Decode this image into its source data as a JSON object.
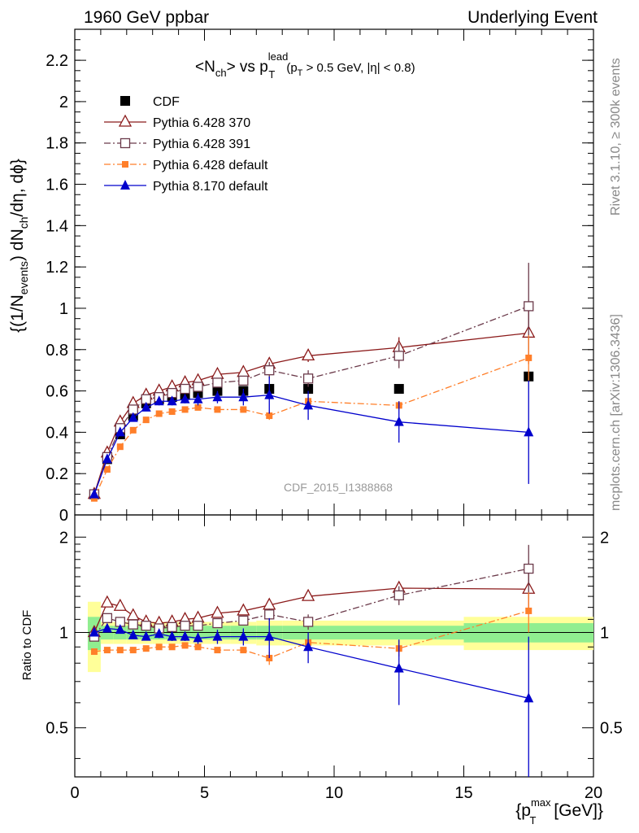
{
  "header": {
    "left": "1960 GeV ppbar",
    "right": "Underlying Event"
  },
  "side_labels": {
    "rivet": "Rivet 3.1.10, ≥ 300k events",
    "mcplots": "mcplots.cern.ch [arXiv:1306.3436]"
  },
  "watermark": "CDF_2015_I1388868",
  "plot_title": {
    "main": "<N",
    "ch_sub": "ch",
    "vs": "> vs p",
    "lead_sup": "lead",
    "T_sub": "T",
    "cuts": "(p",
    "cuts_T": "T",
    "cuts_rest": " > 0.5 GeV, |η| < 0.8)"
  },
  "y_axis_label_main": {
    "p1": "{(1/N",
    "events": "events",
    "p2": ") dN",
    "ch": "ch",
    "p3": "/dη, dϕ}"
  },
  "ratio_label": "Ratio to CDF",
  "x_axis_label": {
    "p1": "{p",
    "max": "max",
    "T": "T",
    "p2": " [GeV]}"
  },
  "colors": {
    "cdf": "#000000",
    "py370": "#8b1a1a",
    "py391": "#6b3a4a",
    "py_default": "#ff7f2a",
    "py8": "#0000cc",
    "band_inner": "#90ee90",
    "band_outer": "#ffff99"
  },
  "chart_data": {
    "type": "scatter",
    "x_range": [
      0,
      20
    ],
    "main_y_range": [
      0,
      2.35
    ],
    "ratio_y_range": [
      0.35,
      2.35
    ],
    "ratio_y_scale": "log",
    "main_y_ticks": [
      "0",
      "0.2",
      "0.4",
      "0.6",
      "0.8",
      "1",
      "1.2",
      "1.4",
      "1.6",
      "1.8",
      "2",
      "2.2"
    ],
    "ratio_y_ticks": [
      "0.5",
      "1",
      "2"
    ],
    "x_ticks": [
      "0",
      "5",
      "10",
      "15",
      "20"
    ],
    "x": [
      0.75,
      1.25,
      1.75,
      2.25,
      2.75,
      3.25,
      3.75,
      4.25,
      4.75,
      5.5,
      6.5,
      7.5,
      9.0,
      12.5,
      17.5
    ],
    "x_bin_edges": [
      0.5,
      1.0,
      1.5,
      2.0,
      2.5,
      3.0,
      3.5,
      4.0,
      4.5,
      5.0,
      6.0,
      7.0,
      8.0,
      10.0,
      15.0,
      20.0
    ],
    "legend_position": "top-left",
    "series": [
      {
        "name": "CDF",
        "values": [
          0.1,
          0.27,
          0.39,
          0.48,
          0.54,
          0.56,
          0.57,
          0.58,
          0.59,
          0.6,
          0.6,
          0.61,
          0.61,
          0.61,
          0.67
        ],
        "ratio": [
          1,
          1,
          1,
          1,
          1,
          1,
          1,
          1,
          1,
          1,
          1,
          1,
          1,
          1,
          1
        ],
        "ratio_band_inner": [
          0.12,
          0.05,
          0.05,
          0.05,
          0.05,
          0.05,
          0.05,
          0.05,
          0.05,
          0.05,
          0.05,
          0.05,
          0.05,
          0.05,
          0.07
        ],
        "ratio_band_outer": [
          0.25,
          0.08,
          0.08,
          0.08,
          0.08,
          0.08,
          0.08,
          0.08,
          0.08,
          0.08,
          0.08,
          0.09,
          0.09,
          0.09,
          0.12
        ]
      },
      {
        "name": "Pythia 6.428 370",
        "values": [
          0.1,
          0.3,
          0.45,
          0.54,
          0.58,
          0.6,
          0.62,
          0.64,
          0.65,
          0.68,
          0.69,
          0.73,
          0.77,
          0.81,
          0.88
        ],
        "errors": [
          0,
          0.01,
          0.01,
          0.01,
          0.01,
          0.01,
          0.01,
          0.01,
          0.01,
          0.01,
          0.01,
          0.03,
          0.03,
          0.05,
          0.15
        ],
        "ratio": [
          1.0,
          1.24,
          1.21,
          1.13,
          1.08,
          1.07,
          1.08,
          1.1,
          1.11,
          1.15,
          1.17,
          1.22,
          1.3,
          1.38,
          1.37
        ],
        "ratio_errors": [
          0,
          0.02,
          0.02,
          0.02,
          0.02,
          0.02,
          0.02,
          0.02,
          0.02,
          0.02,
          0.02,
          0.04,
          0.04,
          0.07,
          0.22
        ],
        "marker": "open-triangle",
        "line": "solid"
      },
      {
        "name": "Pythia 6.428 391",
        "values": [
          0.1,
          0.28,
          0.42,
          0.51,
          0.56,
          0.57,
          0.59,
          0.61,
          0.62,
          0.64,
          0.65,
          0.7,
          0.66,
          0.77,
          1.01
        ],
        "errors": [
          0,
          0.01,
          0.01,
          0.01,
          0.01,
          0.01,
          0.01,
          0.01,
          0.01,
          0.01,
          0.01,
          0.04,
          0.04,
          0.06,
          0.21
        ],
        "ratio": [
          0.97,
          1.11,
          1.08,
          1.06,
          1.05,
          1.03,
          1.04,
          1.05,
          1.05,
          1.07,
          1.09,
          1.14,
          1.08,
          1.31,
          1.59
        ],
        "ratio_errors": [
          0,
          0.02,
          0.02,
          0.02,
          0.02,
          0.02,
          0.02,
          0.02,
          0.02,
          0.02,
          0.02,
          0.05,
          0.06,
          0.09,
          0.3
        ],
        "marker": "open-square",
        "line": "dash-dot"
      },
      {
        "name": "Pythia 6.428 default",
        "values": [
          0.08,
          0.22,
          0.33,
          0.41,
          0.46,
          0.49,
          0.5,
          0.51,
          0.52,
          0.51,
          0.51,
          0.48,
          0.55,
          0.53,
          0.76
        ],
        "errors": [
          0,
          0.01,
          0.01,
          0.01,
          0.01,
          0.01,
          0.01,
          0.01,
          0.01,
          0.01,
          0.01,
          0.02,
          0.02,
          0.02,
          0.11
        ],
        "ratio": [
          0.87,
          0.88,
          0.88,
          0.88,
          0.89,
          0.9,
          0.9,
          0.91,
          0.9,
          0.88,
          0.88,
          0.83,
          0.93,
          0.89,
          1.17
        ],
        "ratio_errors": [
          0,
          0.01,
          0.01,
          0.01,
          0.01,
          0.01,
          0.01,
          0.01,
          0.01,
          0.01,
          0.02,
          0.04,
          0.04,
          0.05,
          0.17
        ],
        "marker": "filled-square-small",
        "line": "dash-dot"
      },
      {
        "name": "Pythia 8.170 default",
        "values": [
          0.1,
          0.27,
          0.4,
          0.47,
          0.52,
          0.55,
          0.55,
          0.56,
          0.56,
          0.57,
          0.57,
          0.58,
          0.53,
          0.45,
          0.4
        ],
        "errors": [
          0,
          0.01,
          0.01,
          0.01,
          0.01,
          0.02,
          0.02,
          0.02,
          0.03,
          0.03,
          0.04,
          0.09,
          0.07,
          0.1,
          0.25
        ],
        "ratio": [
          1.0,
          1.03,
          1.02,
          0.98,
          0.97,
          0.99,
          0.97,
          0.97,
          0.96,
          0.97,
          0.97,
          0.97,
          0.9,
          0.77,
          0.62
        ],
        "ratio_errors": [
          0,
          0.02,
          0.02,
          0.02,
          0.02,
          0.03,
          0.03,
          0.03,
          0.04,
          0.05,
          0.06,
          0.14,
          0.1,
          0.18,
          0.35
        ],
        "marker": "filled-triangle",
        "line": "solid"
      }
    ]
  }
}
